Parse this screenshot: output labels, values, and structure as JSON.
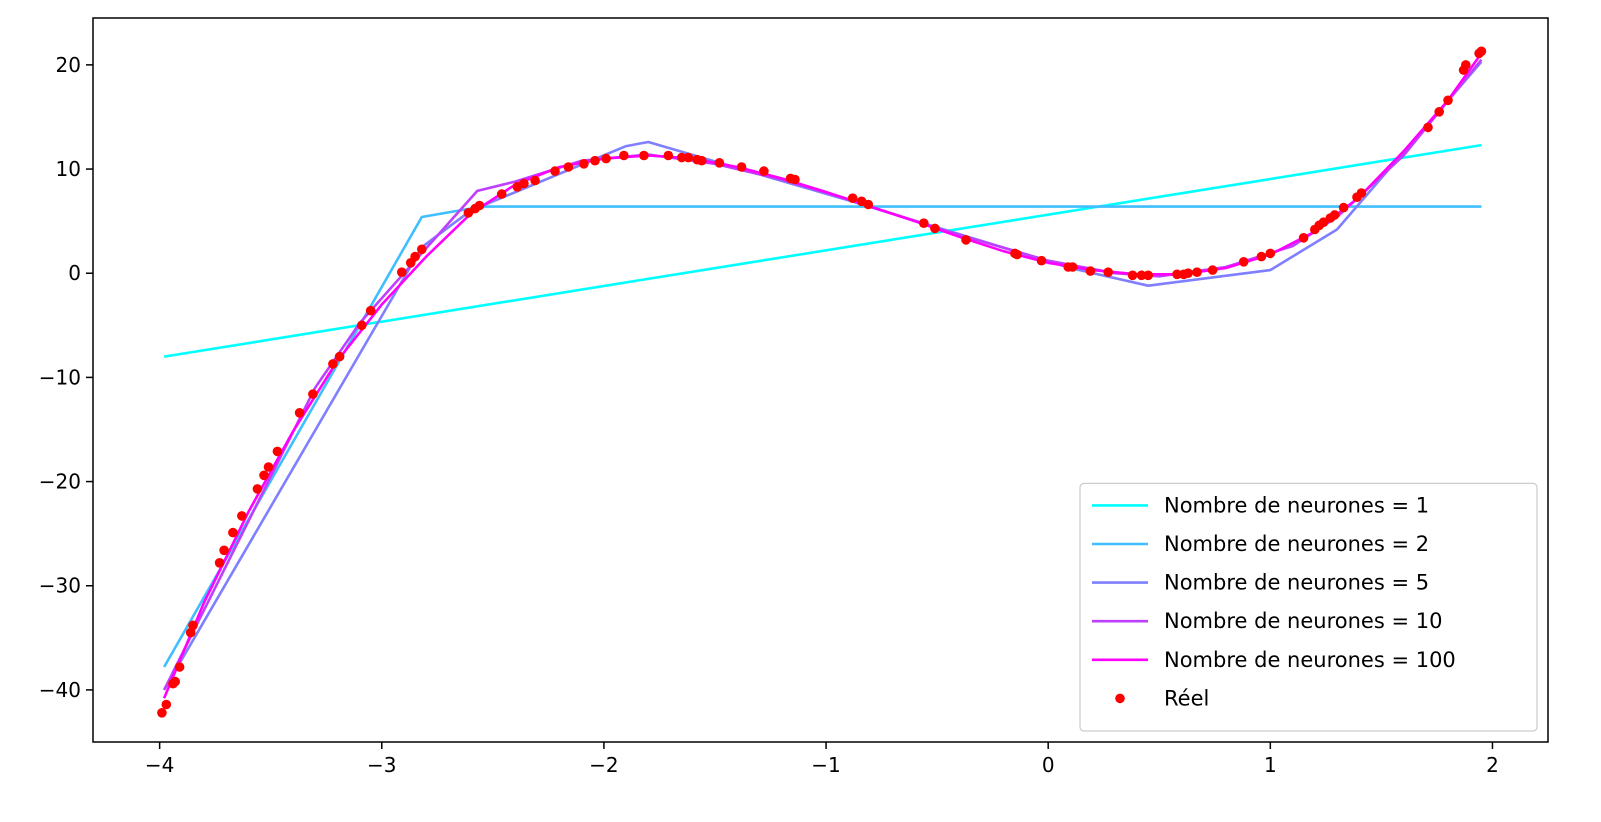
{
  "chart_data": {
    "type": "line",
    "title": "",
    "xlabel": "",
    "ylabel": "",
    "xlim": [
      -4.3,
      2.25
    ],
    "ylim": [
      -45,
      24.5
    ],
    "xticks": [
      -4,
      -3,
      -2,
      -1,
      0,
      1,
      2
    ],
    "yticks": [
      -40,
      -30,
      -20,
      -10,
      0,
      10,
      20
    ],
    "xtick_labels": [
      "−4",
      "−3",
      "−2",
      "−1",
      "0",
      "1",
      "2"
    ],
    "ytick_labels": [
      "−40",
      "−30",
      "−20",
      "−10",
      "0",
      "10",
      "20"
    ],
    "grid": false,
    "legend_position": "lower-right",
    "series": [
      {
        "name": "Nombre de neurones = 1",
        "kind": "line",
        "color": "#00ffff",
        "points": [
          [
            -3.98,
            -8.0
          ],
          [
            1.95,
            12.3
          ]
        ]
      },
      {
        "name": "Nombre de neurones = 2",
        "kind": "line",
        "color": "#3fbfff",
        "points": [
          [
            -3.98,
            -37.8
          ],
          [
            -2.82,
            5.4
          ],
          [
            -2.55,
            6.4
          ],
          [
            1.95,
            6.4
          ]
        ]
      },
      {
        "name": "Nombre de neurones = 5",
        "kind": "line",
        "color": "#7f7fff",
        "points": [
          [
            -3.98,
            -40.0
          ],
          [
            -2.82,
            2.5
          ],
          [
            -2.6,
            6.0
          ],
          [
            -1.9,
            12.2
          ],
          [
            -1.8,
            12.6
          ],
          [
            -0.9,
            7.0
          ],
          [
            0.1,
            0.5
          ],
          [
            0.45,
            -1.2
          ],
          [
            1.0,
            0.3
          ],
          [
            1.3,
            4.2
          ],
          [
            1.95,
            20.3
          ]
        ]
      },
      {
        "name": "Nombre de neurones = 10",
        "kind": "line",
        "color": "#bf3fff",
        "points": [
          [
            -3.98,
            -40.0
          ],
          [
            -3.3,
            -11.0
          ],
          [
            -3.1,
            -4.8
          ],
          [
            -2.85,
            1.2
          ],
          [
            -2.57,
            7.9
          ],
          [
            -2.4,
            8.8
          ],
          [
            -2.1,
            10.8
          ],
          [
            -1.8,
            11.4
          ],
          [
            -1.5,
            10.5
          ],
          [
            -1.2,
            9.0
          ],
          [
            -0.9,
            7.1
          ],
          [
            -0.5,
            4.3
          ],
          [
            0.0,
            1.2
          ],
          [
            0.3,
            0.0
          ],
          [
            0.5,
            -0.3
          ],
          [
            0.8,
            0.6
          ],
          [
            1.1,
            2.6
          ],
          [
            1.3,
            5.4
          ],
          [
            1.6,
            11.3
          ],
          [
            1.95,
            20.5
          ]
        ]
      },
      {
        "name": "Nombre de neurones = 100",
        "kind": "line",
        "color": "#ff00ff",
        "points": [
          [
            -3.98,
            -40.8
          ],
          [
            -3.8,
            -31.6
          ],
          [
            -3.6,
            -22.9
          ],
          [
            -3.4,
            -15.2
          ],
          [
            -3.2,
            -8.4
          ],
          [
            -3.0,
            -3.0
          ],
          [
            -2.8,
            1.6
          ],
          [
            -2.6,
            5.7
          ],
          [
            -2.4,
            8.5
          ],
          [
            -2.2,
            10.2
          ],
          [
            -2.0,
            11.0
          ],
          [
            -1.8,
            11.3
          ],
          [
            -1.6,
            11.0
          ],
          [
            -1.4,
            10.2
          ],
          [
            -1.2,
            9.1
          ],
          [
            -1.0,
            7.8
          ],
          [
            -0.8,
            6.4
          ],
          [
            -0.6,
            5.0
          ],
          [
            -0.4,
            3.5
          ],
          [
            -0.2,
            2.1
          ],
          [
            0.0,
            1.0
          ],
          [
            0.2,
            0.3
          ],
          [
            0.4,
            -0.1
          ],
          [
            0.6,
            -0.1
          ],
          [
            0.8,
            0.5
          ],
          [
            1.0,
            1.8
          ],
          [
            1.2,
            4.0
          ],
          [
            1.4,
            7.3
          ],
          [
            1.6,
            11.7
          ],
          [
            1.8,
            16.6
          ],
          [
            1.95,
            21.1
          ]
        ]
      },
      {
        "name": "Réel",
        "kind": "scatter",
        "color": "#ff0000",
        "points": [
          [
            -3.99,
            -42.2
          ],
          [
            -3.97,
            -41.4
          ],
          [
            -3.94,
            -39.4
          ],
          [
            -3.93,
            -39.2
          ],
          [
            -3.91,
            -37.8
          ],
          [
            -3.86,
            -34.5
          ],
          [
            -3.85,
            -33.8
          ],
          [
            -3.73,
            -27.8
          ],
          [
            -3.71,
            -26.6
          ],
          [
            -3.67,
            -24.9
          ],
          [
            -3.63,
            -23.3
          ],
          [
            -3.56,
            -20.7
          ],
          [
            -3.53,
            -19.4
          ],
          [
            -3.51,
            -18.6
          ],
          [
            -3.47,
            -17.1
          ],
          [
            -3.37,
            -13.4
          ],
          [
            -3.31,
            -11.6
          ],
          [
            -3.22,
            -8.7
          ],
          [
            -3.19,
            -8.0
          ],
          [
            -3.09,
            -5.0
          ],
          [
            -3.05,
            -3.6
          ],
          [
            -2.91,
            0.1
          ],
          [
            -2.87,
            1.0
          ],
          [
            -2.85,
            1.6
          ],
          [
            -2.82,
            2.3
          ],
          [
            -2.61,
            5.8
          ],
          [
            -2.58,
            6.2
          ],
          [
            -2.56,
            6.5
          ],
          [
            -2.46,
            7.6
          ],
          [
            -2.39,
            8.3
          ],
          [
            -2.36,
            8.6
          ],
          [
            -2.31,
            8.9
          ],
          [
            -2.22,
            9.8
          ],
          [
            -2.16,
            10.2
          ],
          [
            -2.09,
            10.5
          ],
          [
            -2.04,
            10.8
          ],
          [
            -1.99,
            11.0
          ],
          [
            -1.91,
            11.3
          ],
          [
            -1.82,
            11.3
          ],
          [
            -1.71,
            11.3
          ],
          [
            -1.65,
            11.1
          ],
          [
            -1.62,
            11.1
          ],
          [
            -1.58,
            10.9
          ],
          [
            -1.56,
            10.8
          ],
          [
            -1.48,
            10.6
          ],
          [
            -1.38,
            10.2
          ],
          [
            -1.28,
            9.8
          ],
          [
            -1.16,
            9.1
          ],
          [
            -1.14,
            9.0
          ],
          [
            -0.88,
            7.2
          ],
          [
            -0.84,
            6.9
          ],
          [
            -0.81,
            6.6
          ],
          [
            -0.56,
            4.8
          ],
          [
            -0.51,
            4.3
          ],
          [
            -0.37,
            3.2
          ],
          [
            -0.15,
            1.9
          ],
          [
            -0.14,
            1.8
          ],
          [
            -0.03,
            1.2
          ],
          [
            0.09,
            0.6
          ],
          [
            0.11,
            0.6
          ],
          [
            0.19,
            0.2
          ],
          [
            0.27,
            0.1
          ],
          [
            0.38,
            -0.2
          ],
          [
            0.42,
            -0.2
          ],
          [
            0.45,
            -0.2
          ],
          [
            0.58,
            -0.1
          ],
          [
            0.61,
            -0.1
          ],
          [
            0.63,
            0.0
          ],
          [
            0.67,
            0.1
          ],
          [
            0.74,
            0.3
          ],
          [
            0.88,
            1.1
          ],
          [
            0.96,
            1.6
          ],
          [
            1.0,
            1.9
          ],
          [
            1.15,
            3.4
          ],
          [
            1.2,
            4.2
          ],
          [
            1.22,
            4.6
          ],
          [
            1.24,
            4.9
          ],
          [
            1.27,
            5.3
          ],
          [
            1.29,
            5.6
          ],
          [
            1.33,
            6.3
          ],
          [
            1.39,
            7.3
          ],
          [
            1.41,
            7.7
          ],
          [
            1.71,
            14.0
          ],
          [
            1.76,
            15.5
          ],
          [
            1.8,
            16.6
          ],
          [
            1.87,
            19.5
          ],
          [
            1.88,
            20.0
          ],
          [
            1.94,
            21.1
          ],
          [
            1.95,
            21.3
          ]
        ]
      }
    ]
  }
}
